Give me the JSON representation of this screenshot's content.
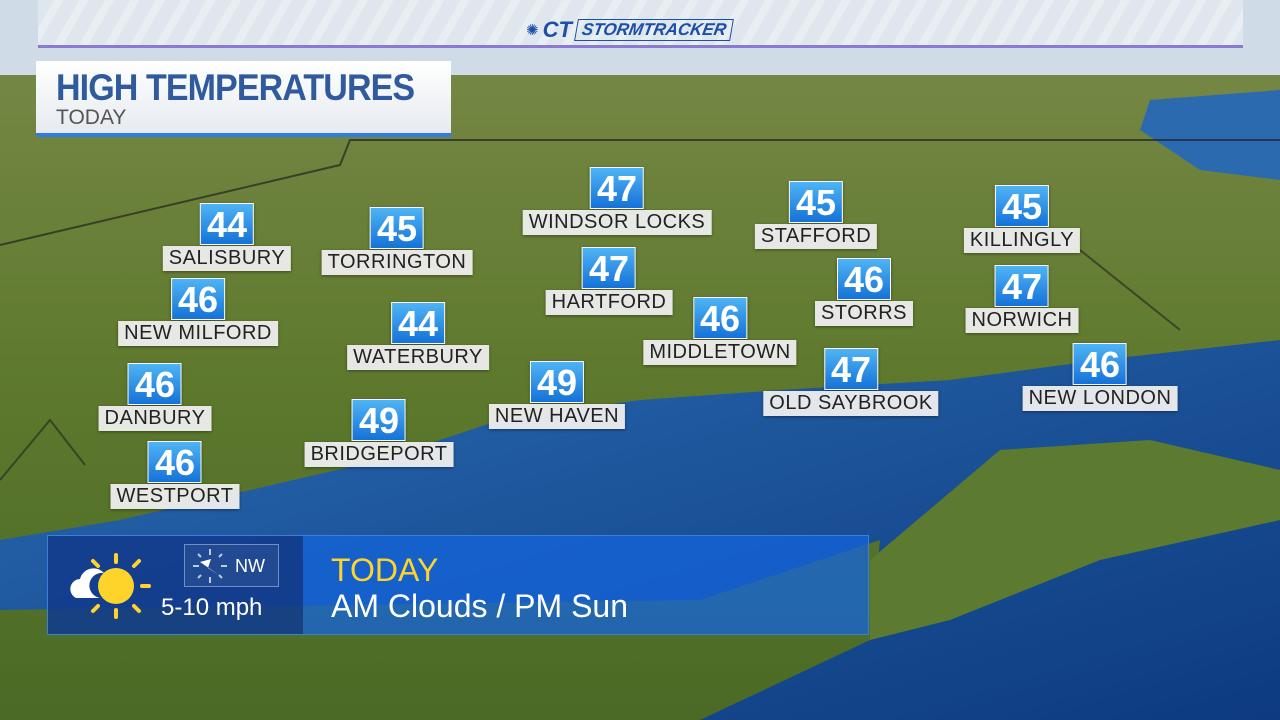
{
  "header": {
    "brand": "CT",
    "product": "STORMTRACKER"
  },
  "title": {
    "main": "HIGH TEMPERATURES",
    "sub": "TODAY"
  },
  "cities": [
    {
      "name": "SALISBURY",
      "temp": "44"
    },
    {
      "name": "TORRINGTON",
      "temp": "45"
    },
    {
      "name": "WINDSOR LOCKS",
      "temp": "47"
    },
    {
      "name": "STAFFORD",
      "temp": "45"
    },
    {
      "name": "KILLINGLY",
      "temp": "45"
    },
    {
      "name": "NEW MILFORD",
      "temp": "46"
    },
    {
      "name": "HARTFORD",
      "temp": "47"
    },
    {
      "name": "STORRS",
      "temp": "46"
    },
    {
      "name": "NORWICH",
      "temp": "47"
    },
    {
      "name": "WATERBURY",
      "temp": "44"
    },
    {
      "name": "MIDDLETOWN",
      "temp": "46"
    },
    {
      "name": "DANBURY",
      "temp": "46"
    },
    {
      "name": "NEW HAVEN",
      "temp": "49"
    },
    {
      "name": "OLD SAYBROOK",
      "temp": "47"
    },
    {
      "name": "NEW LONDON",
      "temp": "46"
    },
    {
      "name": "BRIDGEPORT",
      "temp": "49"
    },
    {
      "name": "WESTPORT",
      "temp": "46"
    }
  ],
  "forecast": {
    "icon": "partly-sunny-icon",
    "wind_dir": "NW",
    "wind_speed": "5-10 mph",
    "period": "TODAY",
    "condition": "AM Clouds / PM Sun"
  },
  "colors": {
    "temp_box": "#1f86e8",
    "period": "#ffd42a",
    "title": "#2f5a9e"
  }
}
